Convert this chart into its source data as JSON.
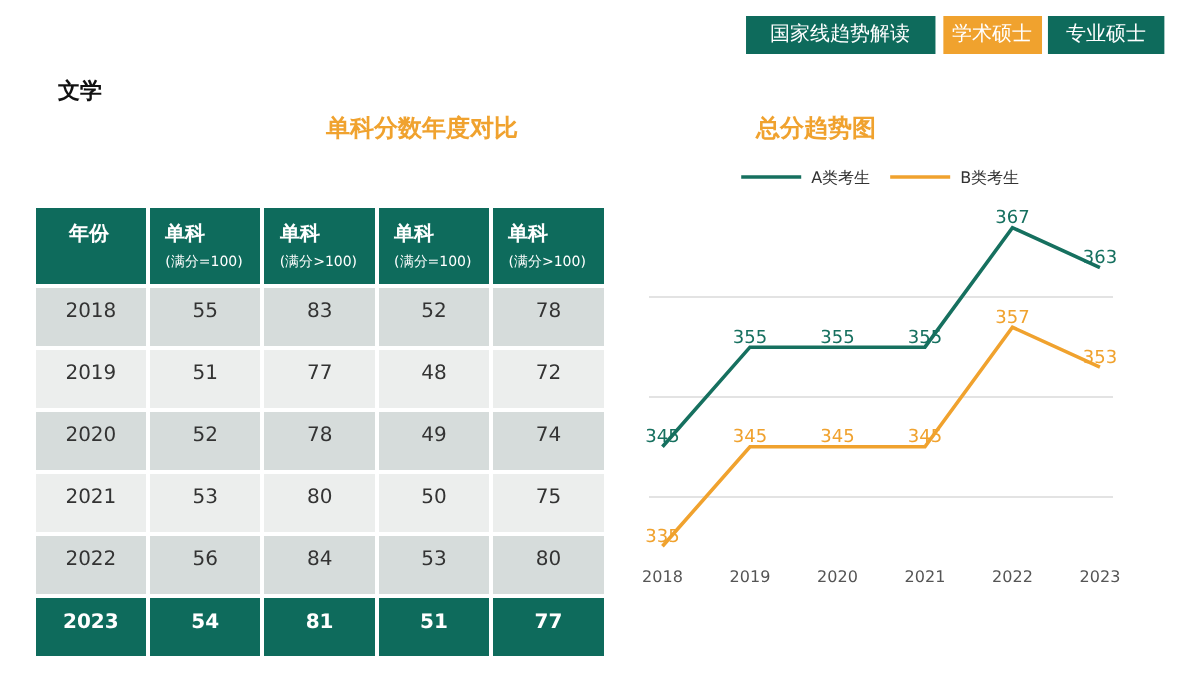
{
  "chart_data": [
    {
      "type": "heatmap",
      "title": "单科分数年度对比",
      "ylabel": "年份",
      "annotations": [
        "文学",
        "国家线趋势解读",
        "学术硕士",
        "专业硕士"
      ],
      "categories": [
        "单科\n(满分=100)",
        "单科\n(满分>100)",
        "单科\n(满分=100)",
        "单科\n(满分>100)"
      ],
      "y_categories": [
        "2018",
        "2019",
        "2020",
        "2021",
        "2022",
        "2023"
      ],
      "cells": [
        [
          55,
          83,
          52,
          78
        ],
        [
          51,
          77,
          48,
          72
        ],
        [
          52,
          78,
          49,
          74
        ],
        [
          53,
          80,
          50,
          75
        ],
        [
          56,
          84,
          53,
          80
        ],
        [
          54,
          81,
          51,
          77
        ]
      ],
      "data_labels": true
    },
    {
      "type": "line",
      "title": "总分趋势图",
      "categories": [
        "2018",
        "2019",
        "2020",
        "2021",
        "2022",
        "2023"
      ],
      "series": [
        {
          "name": "A类考生",
          "color": "#16705f",
          "values": [
            345,
            355,
            355,
            355,
            367,
            363
          ]
        },
        {
          "name": "B类考生",
          "color": "#f0a22e",
          "values": [
            335,
            345,
            345,
            345,
            357,
            353
          ]
        }
      ],
      "tick_labels": "x",
      "grid": "y",
      "legend": "top",
      "data_labels": true,
      "marker": "none",
      "line_style": "solid"
    }
  ]
}
